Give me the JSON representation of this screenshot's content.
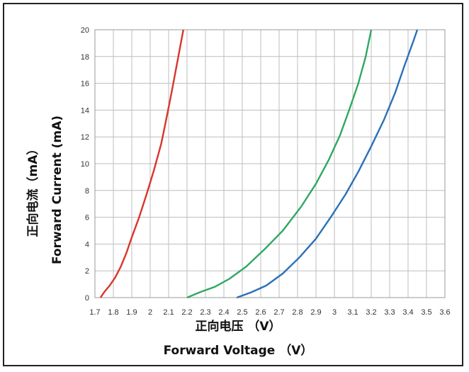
{
  "chart_data": {
    "type": "line",
    "xlabel_cn": "正向电压 （V）",
    "xlabel_en": "Forward Voltage （V）",
    "ylabel_cn": "正向电流（mA）",
    "ylabel_en": "Forward Current (mA)",
    "xlim": [
      1.7,
      3.6
    ],
    "ylim": [
      0,
      20
    ],
    "grid": true,
    "x_ticks": [
      1.7,
      1.8,
      1.9,
      2.0,
      2.1,
      2.2,
      2.3,
      2.4,
      2.5,
      2.6,
      2.7,
      2.8,
      2.9,
      3.0,
      3.1,
      3.2,
      3.3,
      3.4,
      3.5,
      3.6
    ],
    "x_tick_labels": [
      "1.7",
      "1.8",
      "1.9",
      "2",
      "2.1",
      "2.2",
      "2.3",
      "2.4",
      "2.5",
      "2.6",
      "2.7",
      "2.8",
      "2.9",
      "3",
      "3.1",
      "3.2",
      "3.3",
      "3.4",
      "3.5",
      "3.6"
    ],
    "y_ticks": [
      0,
      2,
      4,
      6,
      8,
      10,
      12,
      14,
      16,
      18,
      20
    ],
    "y_tick_labels": [
      "0",
      "2",
      "4",
      "6",
      "8",
      "10",
      "12",
      "14",
      "16",
      "18",
      "20"
    ],
    "series": [
      {
        "color": "#d9352b",
        "points": [
          [
            1.73,
            0
          ],
          [
            1.75,
            0.4
          ],
          [
            1.78,
            0.9
          ],
          [
            1.81,
            1.5
          ],
          [
            1.84,
            2.3
          ],
          [
            1.87,
            3.3
          ],
          [
            1.9,
            4.5
          ],
          [
            1.94,
            6.0
          ],
          [
            1.98,
            7.7
          ],
          [
            2.02,
            9.5
          ],
          [
            2.06,
            11.5
          ],
          [
            2.09,
            13.5
          ],
          [
            2.12,
            15.6
          ],
          [
            2.15,
            17.8
          ],
          [
            2.18,
            20
          ]
        ]
      },
      {
        "color": "#2fa862",
        "points": [
          [
            2.2,
            0
          ],
          [
            2.27,
            0.4
          ],
          [
            2.35,
            0.8
          ],
          [
            2.43,
            1.4
          ],
          [
            2.52,
            2.3
          ],
          [
            2.62,
            3.6
          ],
          [
            2.72,
            5.0
          ],
          [
            2.82,
            6.8
          ],
          [
            2.9,
            8.5
          ],
          [
            2.97,
            10.3
          ],
          [
            3.03,
            12.1
          ],
          [
            3.08,
            14.0
          ],
          [
            3.13,
            16.0
          ],
          [
            3.17,
            18.0
          ],
          [
            3.2,
            20
          ]
        ]
      },
      {
        "color": "#2a70b8",
        "points": [
          [
            2.47,
            0
          ],
          [
            2.55,
            0.4
          ],
          [
            2.63,
            0.9
          ],
          [
            2.72,
            1.8
          ],
          [
            2.81,
            3.0
          ],
          [
            2.9,
            4.4
          ],
          [
            2.98,
            6.0
          ],
          [
            3.06,
            7.7
          ],
          [
            3.13,
            9.4
          ],
          [
            3.2,
            11.3
          ],
          [
            3.27,
            13.3
          ],
          [
            3.33,
            15.3
          ],
          [
            3.38,
            17.3
          ],
          [
            3.43,
            19.2
          ],
          [
            3.45,
            20
          ]
        ]
      }
    ]
  }
}
